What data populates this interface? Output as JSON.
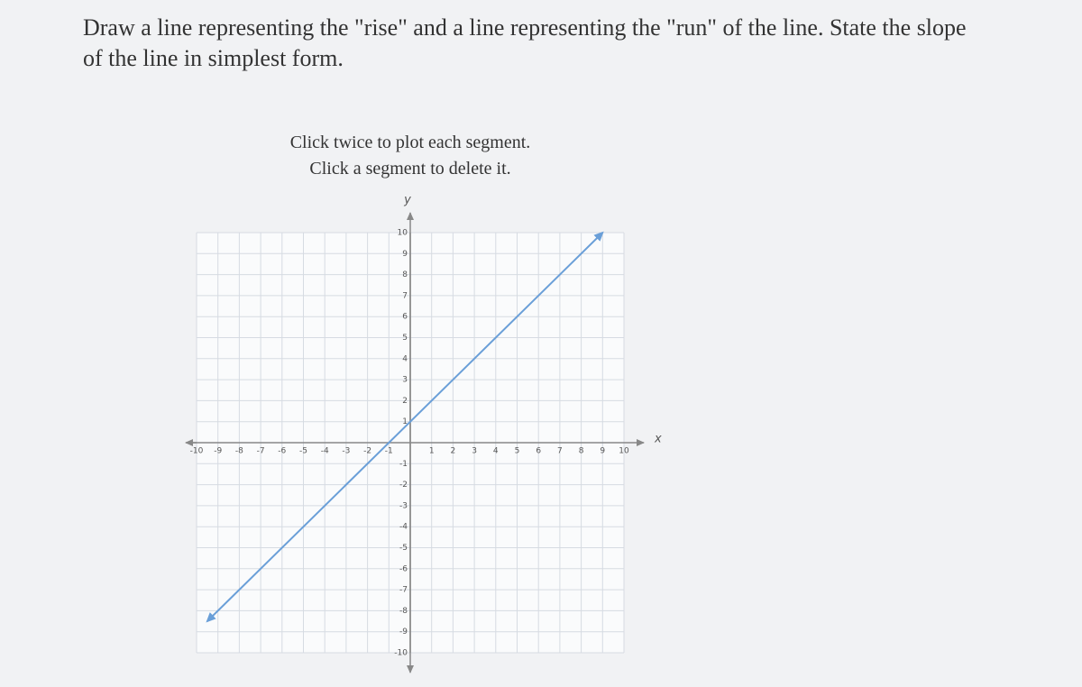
{
  "question": "Draw a line representing the \"rise\" and a line representing the \"run\" of the line. State the slope of the line in simplest form.",
  "instructions": [
    "Click twice to plot each segment.",
    "Click a segment to delete it."
  ],
  "graph": {
    "x_label": "x",
    "y_label": "y",
    "xlim": [
      -10,
      10
    ],
    "ylim": [
      -10,
      10
    ],
    "xticks": [
      -10,
      -9,
      -8,
      -7,
      -6,
      -5,
      -4,
      -3,
      -2,
      -1,
      1,
      2,
      3,
      4,
      5,
      6,
      7,
      8,
      9,
      10
    ],
    "yticks": [
      10,
      9,
      8,
      7,
      6,
      5,
      4,
      3,
      2,
      1,
      -1,
      -2,
      -3,
      -4,
      -5,
      -6,
      -7,
      -8,
      -9,
      -10
    ],
    "line": {
      "color": "#6a9fd8",
      "x": [
        -9.5,
        9
      ],
      "y": [
        -8.5,
        10
      ]
    }
  }
}
